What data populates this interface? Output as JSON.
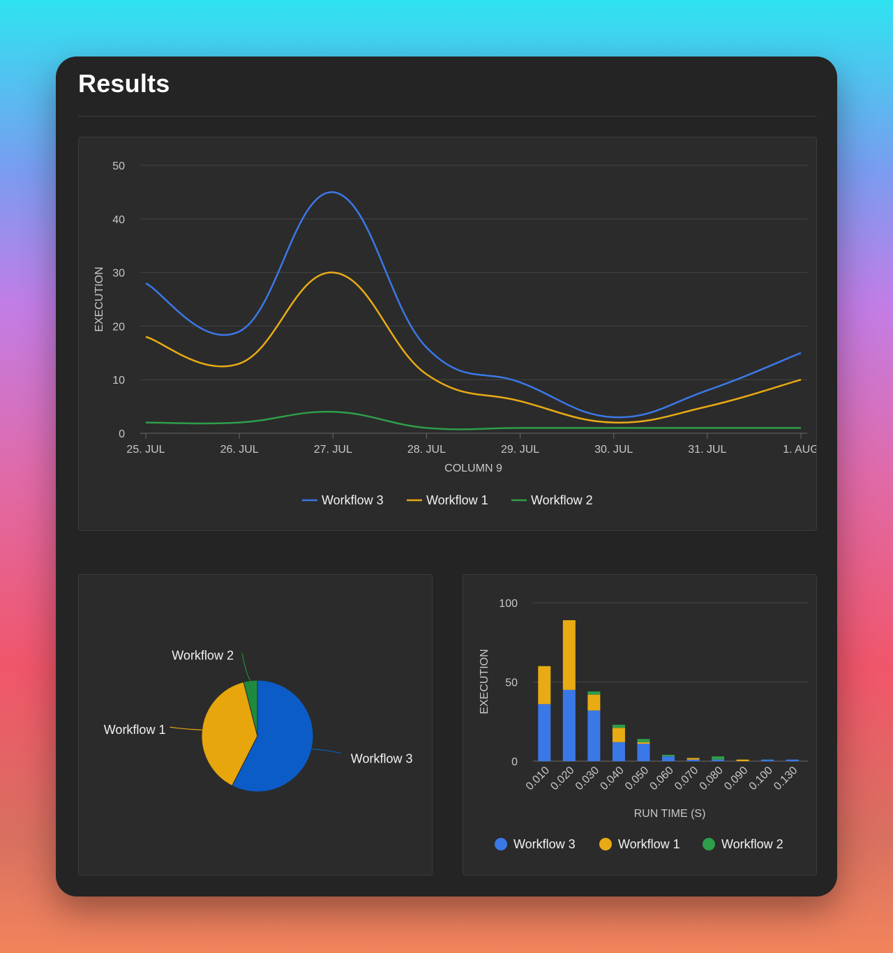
{
  "page": {
    "title": "Results"
  },
  "chart_data": [
    {
      "type": "line",
      "x": [
        "25. JUL",
        "26. JUL",
        "27. JUL",
        "28. JUL",
        "29. JUL",
        "30. JUL",
        "31. JUL",
        "1. AUG"
      ],
      "xlabel": "COLUMN 9",
      "ylabel": "EXECUTION",
      "ylim": [
        0,
        50
      ],
      "yticks": [
        0,
        10,
        20,
        30,
        40,
        50
      ],
      "grid": true,
      "legend": "bottom",
      "series": [
        {
          "name": "Workflow 3",
          "color": "#3b78e7",
          "values": [
            28,
            19,
            45,
            16,
            9.5,
            3,
            8,
            15
          ]
        },
        {
          "name": "Workflow 1",
          "color": "#e8ab14",
          "values": [
            18,
            13,
            30,
            11,
            6,
            2,
            5,
            10
          ]
        },
        {
          "name": "Workflow 2",
          "color": "#2e9e4a",
          "values": [
            2,
            2,
            4,
            1,
            1,
            1,
            1,
            1
          ]
        }
      ]
    },
    {
      "type": "pie",
      "legend": "labels",
      "slices": [
        {
          "name": "Workflow 3",
          "color": "#0b5cc7",
          "value": 57.5
        },
        {
          "name": "Workflow 1",
          "color": "#e6a60c",
          "value": 38.5
        },
        {
          "name": "Workflow 2",
          "color": "#1f8a3e",
          "value": 4.0
        }
      ]
    },
    {
      "type": "bar",
      "stacked": true,
      "categories": [
        "0.010",
        "0.020",
        "0.030",
        "0.040",
        "0.050",
        "0.060",
        "0.070",
        "0.080",
        "0.090",
        "0.100",
        "0.130"
      ],
      "xlabel": "RUN TIME (S)",
      "ylabel": "EXECUTION",
      "ylim": [
        0,
        100
      ],
      "yticks": [
        0,
        50,
        100
      ],
      "grid": true,
      "legend": "bottom",
      "series": [
        {
          "name": "Workflow 3",
          "color": "#3b78e7",
          "values": [
            36,
            45,
            32,
            12,
            11,
            3,
            1,
            1,
            0,
            1,
            1
          ]
        },
        {
          "name": "Workflow 1",
          "color": "#e8ab14",
          "values": [
            24,
            44,
            10,
            9,
            1,
            0,
            1,
            0,
            1,
            0,
            0
          ]
        },
        {
          "name": "Workflow 2",
          "color": "#2e9e4a",
          "values": [
            0,
            0,
            2,
            2,
            2,
            1,
            0,
            2,
            0,
            0,
            0
          ]
        }
      ]
    }
  ]
}
